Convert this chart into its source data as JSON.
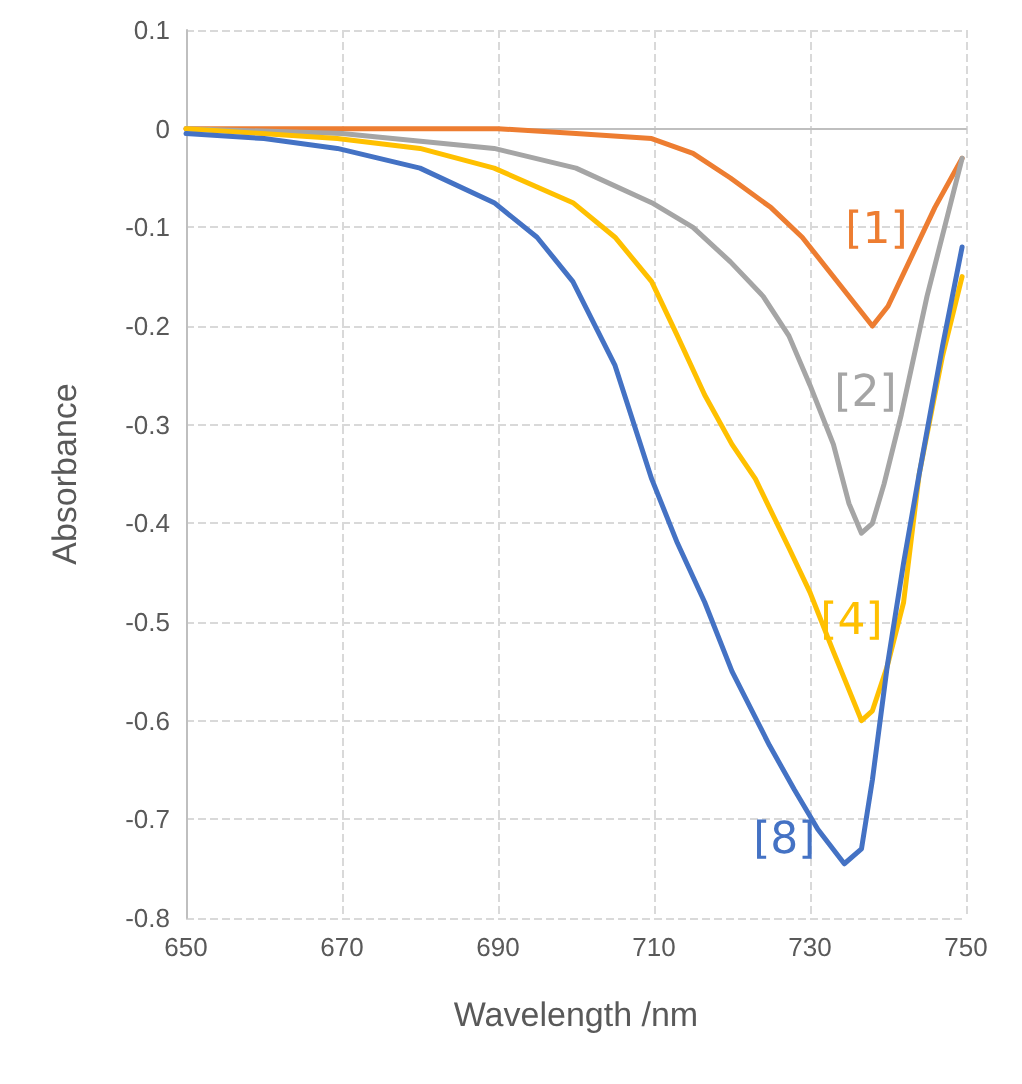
{
  "chart_data": {
    "type": "line",
    "xlabel": "Wavelength /nm",
    "ylabel": "Absorbance",
    "xlim": [
      650,
      750
    ],
    "xticks": [
      650,
      670,
      690,
      710,
      730,
      750
    ],
    "ylim": [
      -0.8,
      0.1
    ],
    "yticks": [
      -0.8,
      -0.7,
      -0.6,
      -0.5,
      -0.4,
      -0.3,
      -0.2,
      -0.1,
      0,
      0.1
    ],
    "grid": true,
    "legend": false,
    "marker": "none",
    "line_style": "solid",
    "series": [
      {
        "name": "[1]",
        "color": "#ed7d31",
        "x": [
          650,
          670,
          690,
          700,
          709.7,
          715,
          719.8,
          725,
          729,
          734,
          738,
          740,
          742.7,
          746,
          749.5
        ],
        "values": [
          0,
          0,
          0,
          -0.005,
          -0.01,
          -0.025,
          -0.05,
          -0.08,
          -0.11,
          -0.16,
          -0.2,
          -0.18,
          -0.135,
          -0.08,
          -0.03
        ]
      },
      {
        "name": "[2]",
        "color": "#a5a5a5",
        "x": [
          650,
          670,
          689.5,
          700,
          709.7,
          715,
          719.8,
          724,
          727.3,
          730,
          733,
          735,
          736.6,
          738,
          739.5,
          741.7,
          745,
          749.5
        ],
        "values": [
          0,
          -0.005,
          -0.02,
          -0.04,
          -0.075,
          -0.1,
          -0.135,
          -0.17,
          -0.21,
          -0.26,
          -0.32,
          -0.38,
          -0.41,
          -0.4,
          -0.36,
          -0.29,
          -0.17,
          -0.03
        ]
      },
      {
        "name": "[4]",
        "color": "#ffc000",
        "x": [
          650,
          669.4,
          680,
          689.5,
          699.6,
          705,
          709.7,
          713,
          716.5,
          720,
          723,
          727.3,
          730,
          733,
          736.6,
          738,
          739.9,
          742,
          744,
          747,
          749.5
        ],
        "values": [
          0,
          -0.01,
          -0.02,
          -0.04,
          -0.075,
          -0.11,
          -0.155,
          -0.21,
          -0.27,
          -0.32,
          -0.355,
          -0.425,
          -0.47,
          -0.53,
          -0.6,
          -0.59,
          -0.545,
          -0.48,
          -0.35,
          -0.23,
          -0.15
        ]
      },
      {
        "name": "[8]",
        "color": "#4472c4",
        "x": [
          650,
          660,
          669.4,
          680,
          689.5,
          695,
          699.6,
          705,
          709.7,
          713,
          716.5,
          720,
          724.8,
          728,
          731,
          734.4,
          736.6,
          738,
          739.9,
          742,
          744,
          747,
          749.5
        ],
        "values": [
          -0.005,
          -0.01,
          -0.02,
          -0.04,
          -0.075,
          -0.11,
          -0.155,
          -0.24,
          -0.355,
          -0.42,
          -0.48,
          -0.55,
          -0.625,
          -0.67,
          -0.71,
          -0.745,
          -0.73,
          -0.66,
          -0.545,
          -0.44,
          -0.35,
          -0.22,
          -0.12
        ]
      }
    ]
  }
}
